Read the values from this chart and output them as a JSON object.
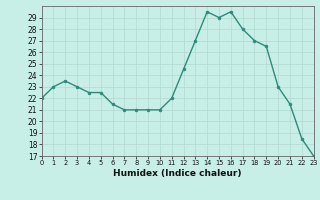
{
  "x": [
    0,
    1,
    2,
    3,
    4,
    5,
    6,
    7,
    8,
    9,
    10,
    11,
    12,
    13,
    14,
    15,
    16,
    17,
    18,
    19,
    20,
    21,
    22,
    23
  ],
  "y": [
    22,
    23,
    23.5,
    23,
    22.5,
    22.5,
    21.5,
    21,
    21,
    21,
    21,
    22,
    24.5,
    27,
    29.5,
    29,
    29.5,
    28,
    27,
    26.5,
    23,
    21.5,
    18.5,
    17
  ],
  "line_color": "#2e8b7a",
  "marker_color": "#2e8b7a",
  "bg_color": "#c8eee8",
  "grid_color": "#b0d8d0",
  "xlabel": "Humidex (Indice chaleur)",
  "ylim": [
    17,
    30
  ],
  "xlim": [
    0,
    23
  ],
  "yticks": [
    17,
    18,
    19,
    20,
    21,
    22,
    23,
    24,
    25,
    26,
    27,
    28,
    29
  ],
  "xticks": [
    0,
    1,
    2,
    3,
    4,
    5,
    6,
    7,
    8,
    9,
    10,
    11,
    12,
    13,
    14,
    15,
    16,
    17,
    18,
    19,
    20,
    21,
    22,
    23
  ]
}
